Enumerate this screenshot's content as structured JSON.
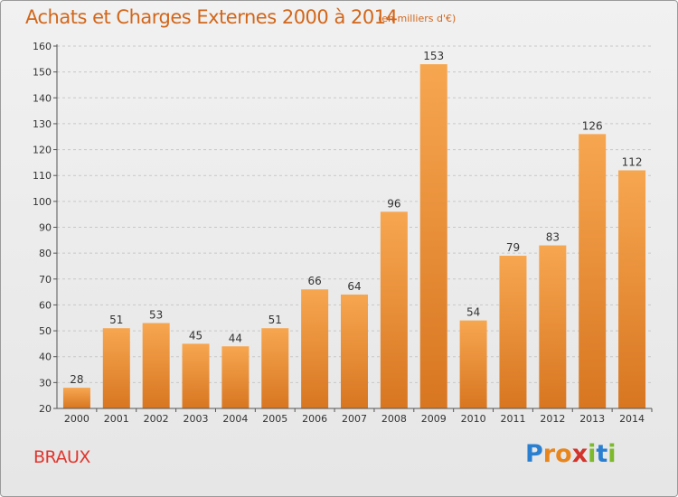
{
  "header": {
    "title": "Achats et Charges Externes 2000 à 2014",
    "unit": "(en milliers d'€)"
  },
  "footer": {
    "place": "BRAUX",
    "logo_letters": [
      {
        "ch": "P",
        "color": "#2a7fd0"
      },
      {
        "ch": "r",
        "color": "#e8861d"
      },
      {
        "ch": "o",
        "color": "#e8861d"
      },
      {
        "ch": "x",
        "color": "#d2332a"
      },
      {
        "ch": "i",
        "color": "#7cb92b"
      },
      {
        "ch": "t",
        "color": "#2a7fd0"
      },
      {
        "ch": "i",
        "color": "#7cb92b"
      }
    ]
  },
  "colors": {
    "bar_light": "#f7a650",
    "bar_dark": "#d87621",
    "axis": "#555555",
    "grid": "#c8c8c8"
  },
  "chart_data": {
    "type": "bar",
    "title": "Achats et Charges Externes 2000 à 2014",
    "subtitle": "(en milliers d'€)",
    "categories": [
      "2000",
      "2001",
      "2002",
      "2003",
      "2004",
      "2005",
      "2006",
      "2007",
      "2008",
      "2009",
      "2010",
      "2011",
      "2012",
      "2013",
      "2014"
    ],
    "values": [
      28,
      51,
      53,
      45,
      44,
      51,
      66,
      64,
      96,
      153,
      54,
      79,
      83,
      126,
      112
    ],
    "ylim": [
      20,
      160
    ],
    "yticks": [
      20,
      30,
      40,
      50,
      60,
      70,
      80,
      90,
      100,
      110,
      120,
      130,
      140,
      150,
      160
    ],
    "grid": "horizontal dashed",
    "legend": "none",
    "data_labels": true
  }
}
